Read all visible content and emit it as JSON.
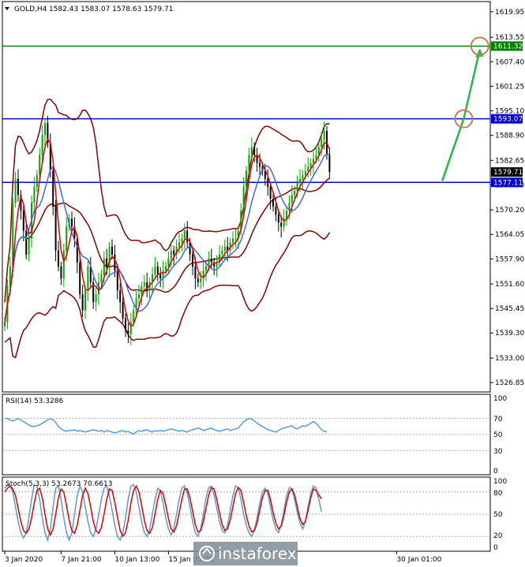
{
  "header": {
    "symbol": "GOLD,H4",
    "ohlc": "1582.43 1583.07 1578.63 1579.71"
  },
  "rsi": {
    "title": "RSI(14) 53.3286",
    "levels": [
      "100",
      "70",
      "50",
      "30",
      "0"
    ]
  },
  "stoch": {
    "title": "Stoch(5,3,3) 53.2673 70.6613",
    "levels": [
      "100",
      "80",
      "50",
      "20",
      "0"
    ]
  },
  "watermark": "instaforex",
  "colors": {
    "bullCandle": "#00aa00",
    "bearCandle": "#000000",
    "bollinger": "#8b0000",
    "ma_fast": "#e00000",
    "ma_slow": "#4169e1",
    "resistance": "#0000dd",
    "target": "#008000",
    "arrow": "#22bb44",
    "circle": "#c08050",
    "rsi_line": "#5b9bd5",
    "stoch_main": "#5b9bd5",
    "stoch_signal": "#e00000"
  },
  "chart_data": {
    "type": "candlestick",
    "symbol": "GOLD",
    "timeframe": "H4",
    "y_ticks": [
      "1619.95",
      "1613.55",
      "1607.40",
      "1601.25",
      "1595.10",
      "1588.90",
      "1582.65",
      "1576.50",
      "1570.20",
      "1564.05",
      "1557.90",
      "1551.60",
      "1545.45",
      "1539.30",
      "1533.00",
      "1526.85"
    ],
    "ylim": [
      1524.5,
      1622.5
    ],
    "x_ticks": [
      "3 Jan 2020",
      "7 Jan 21:00",
      "10 Jan 13:00",
      "15 Jan 05:00",
      "30 Jan 01:00"
    ],
    "x_tick_index": [
      0,
      21,
      41,
      61,
      146
    ],
    "price_labels": [
      {
        "label": "1611.32",
        "value": 1611.32,
        "kind": "target"
      },
      {
        "label": "1593.07",
        "value": 1593.07,
        "kind": "resistance"
      },
      {
        "label": "1579.71",
        "value": 1579.71,
        "kind": "current"
      },
      {
        "label": "1577.11",
        "value": 1577.11,
        "kind": "support"
      }
    ],
    "horizontal_lines": [
      {
        "value": 1611.32,
        "kind": "target"
      },
      {
        "value": 1593.07,
        "kind": "resistance"
      },
      {
        "value": 1577.11,
        "kind": "support"
      }
    ],
    "forecast_path": [
      {
        "from_index": 163,
        "from_value": 1577.5,
        "to_index": 171,
        "to_value": 1593.07
      },
      {
        "from_index": 171,
        "from_value": 1593.07,
        "to_index": 177,
        "to_value": 1610.5
      }
    ],
    "markers": [
      {
        "index": 171,
        "value": 1593.07,
        "shape": "circle"
      },
      {
        "index": 177,
        "value": 1611.32,
        "shape": "circle"
      }
    ],
    "close": [
      1542,
      1551,
      1556,
      1572,
      1578,
      1574,
      1570,
      1565,
      1559,
      1563,
      1572,
      1576,
      1579,
      1584,
      1589,
      1592,
      1587,
      1580,
      1571,
      1560,
      1556,
      1553,
      1560,
      1566,
      1568,
      1566,
      1563,
      1557,
      1549,
      1545,
      1550,
      1556,
      1552,
      1547,
      1549,
      1552,
      1554,
      1558,
      1556,
      1561,
      1559,
      1555,
      1550,
      1547,
      1543,
      1540,
      1539,
      1542,
      1545,
      1548,
      1549,
      1551,
      1552,
      1550,
      1552,
      1554,
      1556,
      1554,
      1553,
      1555,
      1556,
      1558,
      1560,
      1559,
      1561,
      1562,
      1563,
      1565,
      1562,
      1559,
      1556,
      1553,
      1552,
      1553,
      1555,
      1556,
      1558,
      1557,
      1556,
      1557,
      1559,
      1560,
      1561,
      1560,
      1562,
      1563,
      1563,
      1565,
      1570,
      1576,
      1580,
      1584,
      1586,
      1584,
      1582,
      1581,
      1580,
      1578,
      1576,
      1573,
      1571,
      1569,
      1567,
      1566,
      1568,
      1570,
      1572,
      1574,
      1575,
      1577,
      1578,
      1579,
      1580,
      1581,
      1582,
      1583,
      1584,
      1586,
      1588,
      1590,
      1584,
      1579.71
    ],
    "rsi": [
      70,
      70,
      68,
      67,
      68,
      70,
      68,
      66,
      64,
      62,
      60,
      60,
      61,
      62,
      64,
      66,
      68,
      70,
      68,
      65,
      60,
      57,
      55,
      54,
      55,
      55,
      56,
      54,
      55,
      54,
      53,
      54,
      55,
      56,
      55,
      54,
      55,
      53,
      55,
      54,
      53,
      52,
      53,
      54,
      55,
      53,
      54,
      52,
      51,
      53,
      55,
      54,
      55,
      56,
      54,
      53,
      55,
      54,
      55,
      54,
      55,
      56,
      57,
      56,
      55,
      54,
      55,
      54,
      53,
      55,
      56,
      57,
      58,
      57,
      55,
      56,
      57,
      58,
      56,
      55,
      54,
      55,
      56,
      57,
      55,
      56,
      57,
      58,
      62,
      66,
      68,
      70,
      69,
      67,
      64,
      62,
      60,
      58,
      56,
      55,
      54,
      53,
      55,
      57,
      58,
      59,
      60,
      61,
      58,
      57,
      59,
      61,
      60,
      62,
      64,
      66,
      64,
      60,
      56,
      54,
      53.3286
    ],
    "stoch_main": [
      85,
      90,
      88,
      80,
      60,
      40,
      25,
      18,
      25,
      45,
      70,
      90,
      88,
      70,
      45,
      25,
      15,
      30,
      60,
      85,
      88,
      70,
      45,
      25,
      15,
      25,
      50,
      75,
      88,
      80,
      60,
      40,
      25,
      20,
      30,
      50,
      70,
      85,
      88,
      75,
      55,
      35,
      20,
      15,
      25,
      45,
      70,
      88,
      90,
      80,
      60,
      40,
      25,
      20,
      30,
      50,
      70,
      85,
      82,
      65,
      45,
      30,
      22,
      30,
      50,
      70,
      85,
      88,
      78,
      60,
      40,
      25,
      20,
      30,
      50,
      72,
      86,
      88,
      76,
      58,
      40,
      28,
      25,
      35,
      55,
      75,
      88,
      86,
      70,
      50,
      35,
      25,
      20,
      28,
      45,
      65,
      80,
      85,
      78,
      60,
      42,
      30,
      25,
      35,
      55,
      75,
      86,
      84,
      70,
      52,
      38,
      30,
      40,
      60,
      78,
      88,
      85,
      70,
      53.2673
    ],
    "stoch_signal": [
      80,
      85,
      88,
      84,
      75,
      58,
      40,
      28,
      24,
      30,
      45,
      65,
      82,
      85,
      72,
      50,
      30,
      22,
      30,
      50,
      72,
      84,
      80,
      62,
      42,
      28,
      24,
      35,
      55,
      75,
      85,
      78,
      60,
      40,
      28,
      24,
      32,
      50,
      70,
      84,
      82,
      66,
      46,
      28,
      20,
      25,
      42,
      65,
      82,
      88,
      80,
      62,
      42,
      28,
      24,
      32,
      50,
      70,
      82,
      78,
      62,
      44,
      30,
      26,
      34,
      52,
      70,
      84,
      84,
      72,
      54,
      36,
      26,
      28,
      40,
      58,
      76,
      86,
      84,
      70,
      52,
      36,
      28,
      30,
      42,
      60,
      78,
      86,
      82,
      66,
      48,
      34,
      26,
      28,
      38,
      55,
      72,
      82,
      82,
      70,
      52,
      38,
      30,
      34,
      48,
      66,
      80,
      84,
      76,
      60,
      44,
      36,
      40,
      55,
      72,
      84,
      82,
      76,
      70.6613
    ]
  }
}
